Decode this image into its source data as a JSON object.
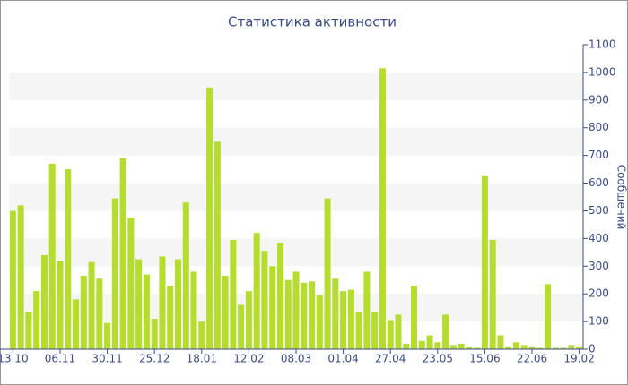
{
  "chart_data": {
    "type": "bar",
    "title": "Статистика активности",
    "y_label": "Сообщений",
    "categories": [
      "13.10",
      null,
      null,
      null,
      null,
      null,
      "06.11",
      null,
      null,
      null,
      null,
      null,
      "30.11",
      null,
      null,
      null,
      null,
      null,
      "25.12",
      null,
      null,
      null,
      null,
      null,
      "18.01",
      null,
      null,
      null,
      null,
      null,
      "12.02",
      null,
      null,
      null,
      null,
      null,
      "08.03",
      null,
      null,
      null,
      null,
      null,
      "01.04",
      null,
      null,
      null,
      null,
      null,
      "27.04",
      null,
      null,
      null,
      null,
      null,
      "23.05",
      null,
      null,
      null,
      null,
      null,
      "15.06",
      null,
      null,
      null,
      null,
      null,
      "22.06",
      null,
      null,
      null,
      null,
      null,
      "19.02"
    ],
    "values": [
      500,
      520,
      135,
      210,
      340,
      670,
      320,
      650,
      180,
      265,
      315,
      255,
      95,
      545,
      690,
      475,
      325,
      270,
      110,
      335,
      230,
      325,
      530,
      280,
      100,
      945,
      750,
      265,
      395,
      160,
      210,
      420,
      355,
      300,
      385,
      250,
      280,
      240,
      245,
      195,
      545,
      255,
      210,
      215,
      135,
      280,
      135,
      1015,
      105,
      125,
      20,
      230,
      30,
      50,
      25,
      125,
      15,
      20,
      10,
      5,
      625,
      395,
      50,
      10,
      25,
      15,
      10,
      5,
      235,
      5,
      5,
      15,
      10
    ],
    "color": "#b5dd2d",
    "ylim": [
      0,
      1100
    ],
    "yticks": [
      0,
      100,
      200,
      300,
      400,
      500,
      600,
      700,
      800,
      900,
      1000,
      1100
    ],
    "grid": true
  }
}
